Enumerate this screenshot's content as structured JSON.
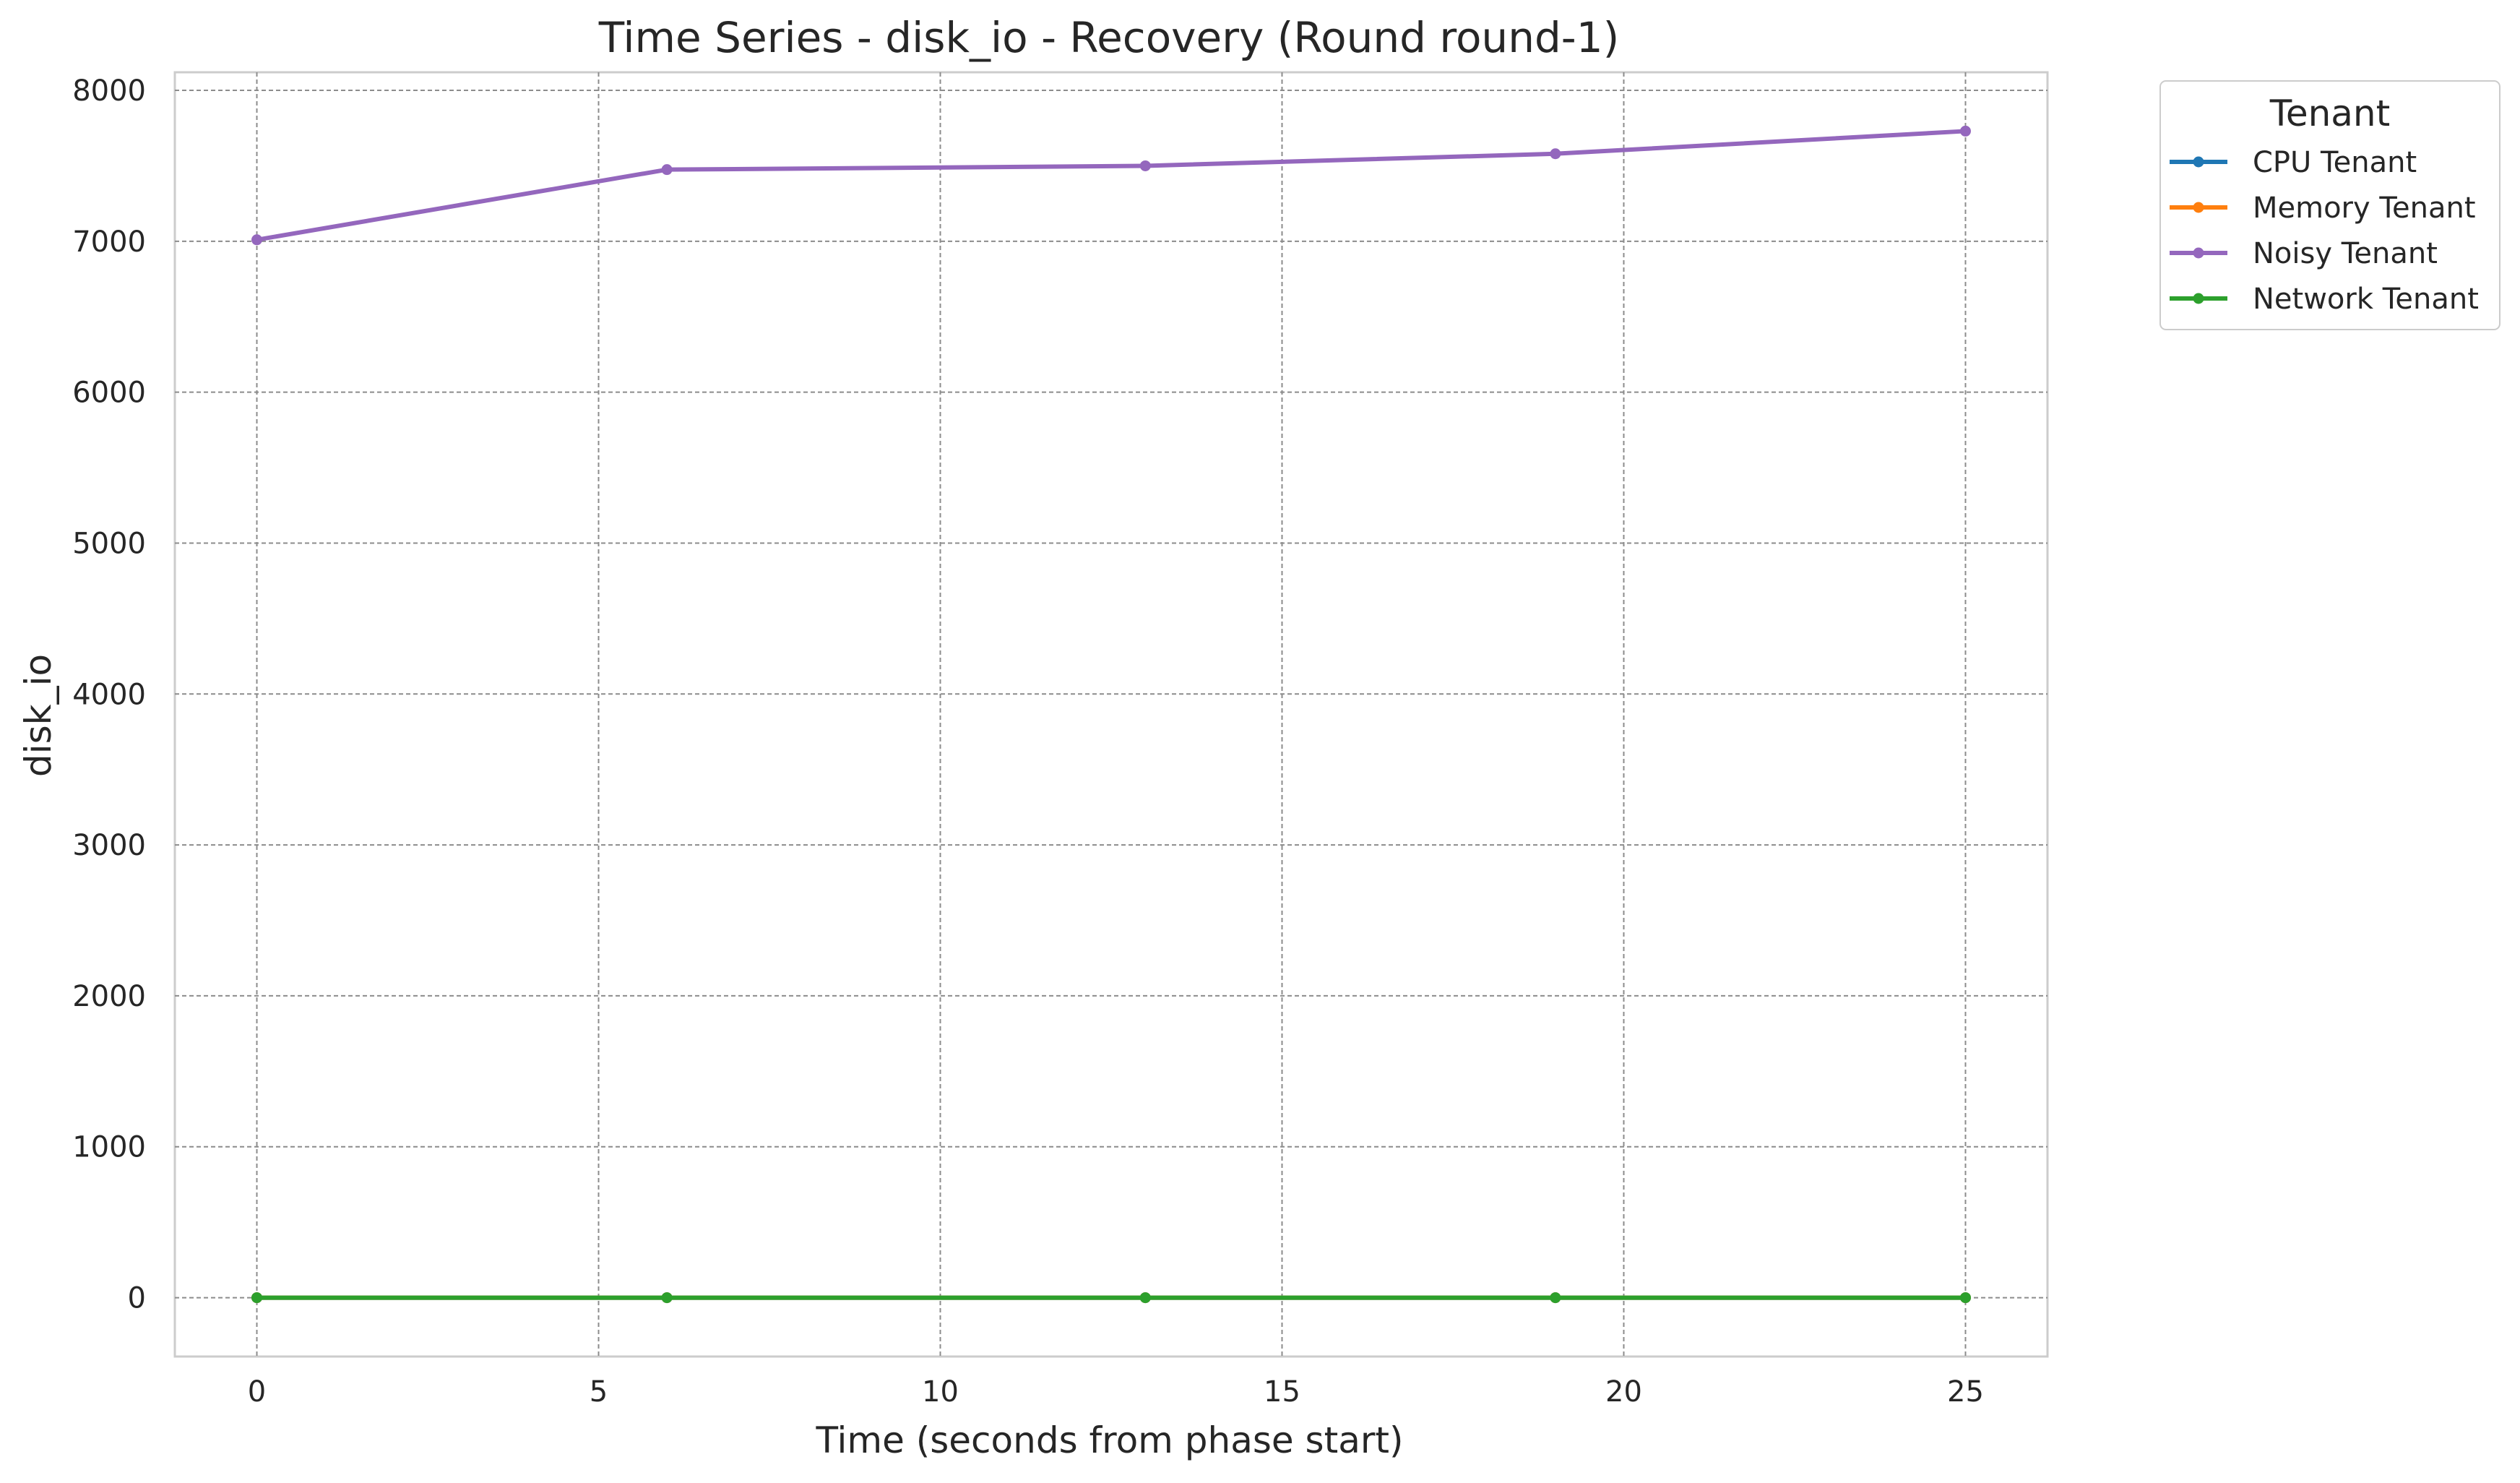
{
  "chart_data": {
    "type": "line",
    "title": "Time Series - disk_io - Recovery (Round round-1)",
    "xlabel": "Time (seconds from phase start)",
    "ylabel": "disk_io",
    "xlim": [
      -1.2,
      26.2
    ],
    "ylim": [
      -390,
      8120
    ],
    "xticks": [
      0,
      5,
      10,
      15,
      20,
      25
    ],
    "yticks": [
      0,
      1000,
      2000,
      3000,
      4000,
      5000,
      6000,
      7000,
      8000
    ],
    "x": [
      0,
      6,
      13,
      19,
      25
    ],
    "grid": true,
    "legend": {
      "title": "Tenant",
      "placement": "outside-right-top"
    },
    "series": [
      {
        "name": "CPU Tenant",
        "color": "#1f77b4",
        "values": [
          0,
          0,
          0,
          0,
          0
        ]
      },
      {
        "name": "Memory Tenant",
        "color": "#ff7f0e",
        "values": [
          0,
          0,
          0,
          0,
          0
        ]
      },
      {
        "name": "Noisy Tenant",
        "color": "#9467bd",
        "values": [
          7010,
          7475,
          7500,
          7580,
          7730
        ]
      },
      {
        "name": "Network Tenant",
        "color": "#2ca02c",
        "values": [
          0,
          0,
          0,
          0,
          0
        ]
      }
    ]
  }
}
